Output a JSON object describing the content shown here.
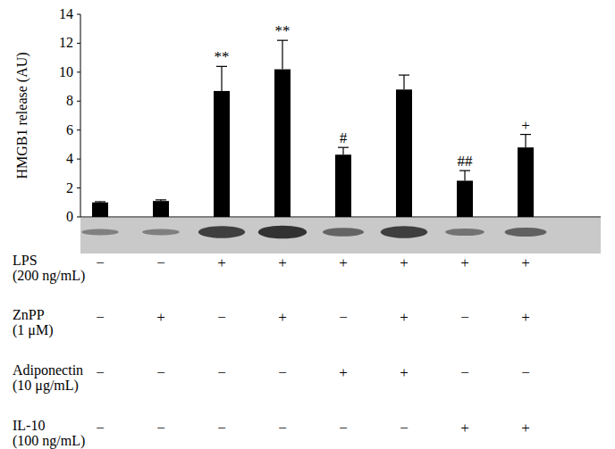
{
  "chart_data": {
    "type": "bar",
    "y_label": "HMGB1 release (AU)",
    "categories": [
      null,
      null,
      null,
      null,
      null,
      null,
      null,
      null
    ],
    "values": [
      1.0,
      1.1,
      8.7,
      10.2,
      4.3,
      8.8,
      2.5,
      4.8
    ],
    "errors": [
      0.05,
      0.08,
      1.7,
      2.0,
      0.5,
      1.0,
      0.7,
      0.9
    ],
    "annotations": [
      null,
      null,
      "**",
      "**",
      "#",
      null,
      "##",
      "+"
    ],
    "color": "#000000",
    "ylim": [
      0,
      14
    ],
    "yticks": [
      0,
      2,
      4,
      6,
      8,
      10,
      12,
      14
    ],
    "grid": false,
    "conditions": [
      {
        "label": "LPS",
        "dose": "(200 ng/mL)",
        "signs": [
          "−",
          "−",
          "+",
          "+",
          "+",
          "+",
          "+",
          "+"
        ]
      },
      {
        "label": "ZnPP",
        "dose": "(1 μM)",
        "signs": [
          "−",
          "+",
          "−",
          "+",
          "−",
          "+",
          "−",
          "+"
        ]
      },
      {
        "label": "Adiponectin",
        "dose": "(10 μg/mL)",
        "signs": [
          "−",
          "−",
          "−",
          "−",
          "+",
          "+",
          "−",
          "−"
        ]
      },
      {
        "label": "IL-10",
        "dose": "(100 ng/mL)",
        "signs": [
          "−",
          "−",
          "−",
          "−",
          "−",
          "−",
          "+",
          "+"
        ]
      }
    ]
  }
}
